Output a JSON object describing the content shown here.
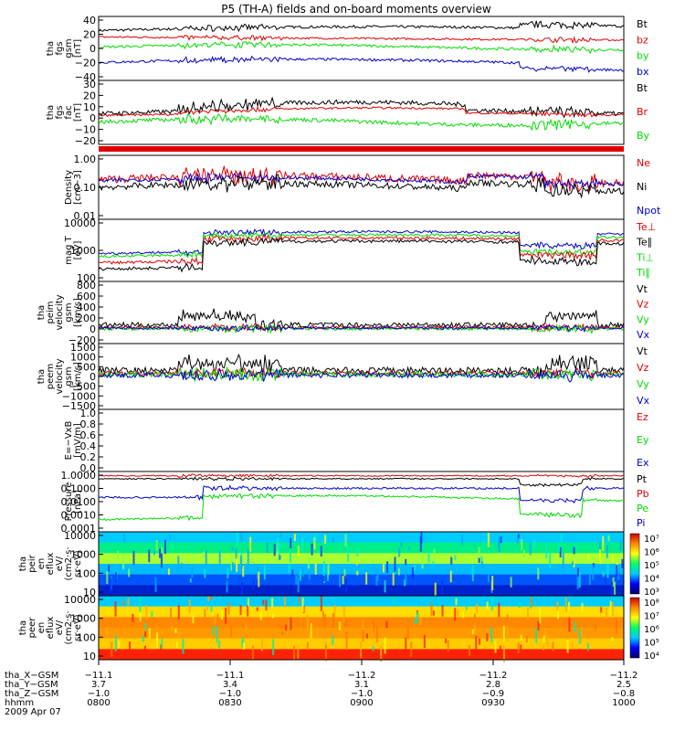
{
  "title": "P5 (TH-A) fields and on-board moments overview",
  "colors": {
    "black": "#000000",
    "red": "#e00000",
    "green": "#00dd00",
    "blue": "#0000cc",
    "orange": "#ff8800",
    "yellow": "#ffee00",
    "cyan": "#00ddff"
  },
  "panels": [
    {
      "id": "fgs-gsm",
      "ylabel": [
        "tha",
        "fgs",
        "gsm",
        "[nT]"
      ],
      "ticks": [
        "40",
        "20",
        "0",
        "−20",
        "−40"
      ],
      "legend": [
        {
          "text": "Bt",
          "color": "black"
        },
        {
          "text": "bz",
          "color": "red"
        },
        {
          "text": "by",
          "color": "green"
        },
        {
          "text": "bx",
          "color": "blue"
        }
      ]
    },
    {
      "id": "fgs-fac",
      "ylabel": [
        "tha",
        "fgs",
        "fac",
        "[nT]"
      ],
      "ticks": [
        "30",
        "20",
        "10",
        "0",
        "−10",
        "−20"
      ],
      "legend": [
        {
          "text": "Bt",
          "color": "black"
        },
        {
          "text": "Br",
          "color": "red"
        },
        {
          "text": "By",
          "color": "green"
        }
      ]
    },
    {
      "id": "density",
      "ylabel": [
        "Density",
        "[cm−3]"
      ],
      "ticks": [
        "1.00",
        "0.10",
        "0.01"
      ],
      "legend": [
        {
          "text": "Ne",
          "color": "red"
        },
        {
          "text": "Ni",
          "color": "black"
        },
        {
          "text": "Npot",
          "color": "blue"
        }
      ]
    },
    {
      "id": "temp",
      "ylabel": [
        "mag T",
        "[eV]"
      ],
      "ticks": [
        "10000",
        "1000",
        "100"
      ],
      "legend": [
        {
          "text": "Te⊥",
          "color": "red"
        },
        {
          "text": "Te∥",
          "color": "black"
        },
        {
          "text": "Ti⊥",
          "color": "green"
        },
        {
          "text": "Ti∥",
          "color": "green"
        }
      ]
    },
    {
      "id": "peim-vel",
      "ylabel": [
        "tha",
        "peim",
        "velocity",
        "gsm",
        "[km/s]"
      ],
      "ticks": [
        "800",
        "600",
        "400",
        "200",
        "0",
        "−200"
      ],
      "legend": [
        {
          "text": "Vt",
          "color": "black"
        },
        {
          "text": "Vz",
          "color": "red"
        },
        {
          "text": "Vy",
          "color": "green"
        },
        {
          "text": "Vx",
          "color": "blue"
        }
      ]
    },
    {
      "id": "peem-vel",
      "ylabel": [
        "tha",
        "peem",
        "velocity",
        "gsm",
        "[km/s]"
      ],
      "ticks": [
        "1500",
        "1000",
        "500",
        "0",
        "−500",
        "−1000",
        "−1500"
      ],
      "legend": [
        {
          "text": "Vt",
          "color": "black"
        },
        {
          "text": "Vz",
          "color": "red"
        },
        {
          "text": "Vy",
          "color": "green"
        },
        {
          "text": "Vx",
          "color": "blue"
        }
      ]
    },
    {
      "id": "efield",
      "ylabel": [
        "E=−VxB",
        "[mV/m]"
      ],
      "ticks": [
        "1.0",
        "0.8",
        "0.6",
        "0.4",
        "0.2",
        "0.0"
      ],
      "legend": [
        {
          "text": "Ez",
          "color": "red"
        },
        {
          "text": "Ey",
          "color": "green"
        },
        {
          "text": "Ex",
          "color": "blue"
        }
      ]
    },
    {
      "id": "pressure",
      "ylabel": [
        "Pressure",
        "[nPa]"
      ],
      "ticks": [
        "1.0000",
        "0.1000",
        "0.0100",
        "0.0010",
        "0.0001"
      ],
      "legend": [
        {
          "text": "Pt",
          "color": "black"
        },
        {
          "text": "Pb",
          "color": "red"
        },
        {
          "text": "Pe",
          "color": "green"
        },
        {
          "text": "Pi",
          "color": "blue"
        }
      ]
    },
    {
      "id": "peir",
      "ylabel": [
        "tha",
        "peir",
        "en",
        "eflux",
        "eV/",
        "(cm2·s·",
        "sr·eV)"
      ],
      "ticks": [
        "10000",
        "1000",
        "100",
        "10"
      ],
      "colorbar": [
        "10⁷",
        "10⁶",
        "10⁵",
        "10⁴",
        "10³"
      ]
    },
    {
      "id": "peer",
      "ylabel": [
        "tha",
        "peer",
        "en",
        "eflux",
        "eV/",
        "(cm2·s·",
        "sr·eV)"
      ],
      "ticks": [
        "10000",
        "1000",
        "100",
        "10"
      ],
      "colorbar": [
        "10⁸",
        "10⁷",
        "10⁶",
        "10⁵",
        "10⁴"
      ]
    }
  ],
  "xaxis": {
    "rows": [
      {
        "label": "tha_X−GSM",
        "values": [
          "−11.1",
          "−11.1",
          "−11.2",
          "−11.2",
          "−11.2"
        ]
      },
      {
        "label": "tha_Y−GSM",
        "values": [
          "3.7",
          "3.4",
          "3.1",
          "2.8",
          "2.5"
        ]
      },
      {
        "label": "tha_Z−GSM",
        "values": [
          "−1.0",
          "−1.0",
          "−1.0",
          "−0.9",
          "−0.8"
        ]
      },
      {
        "label": "hhmm",
        "values": [
          "0800",
          "0830",
          "0900",
          "0930",
          "1000"
        ]
      }
    ],
    "date": "2009 Apr 07"
  },
  "chart_data": {
    "type": "line",
    "title": "P5 (TH-A) fields and on-board moments overview",
    "x": [
      "0800",
      "0830",
      "0900",
      "0930",
      "1000"
    ],
    "series": [
      {
        "name": "Bt",
        "panel": "fgs-gsm",
        "values": [
          25,
          22,
          24,
          27,
          32
        ]
      },
      {
        "name": "bz",
        "panel": "fgs-gsm",
        "values": [
          17,
          14,
          12,
          12,
          14
        ]
      },
      {
        "name": "by",
        "panel": "fgs-gsm",
        "values": [
          0,
          -2,
          2,
          3,
          4
        ]
      },
      {
        "name": "bx",
        "panel": "fgs-gsm",
        "values": [
          -18,
          -8,
          -12,
          -18,
          -25
        ]
      },
      {
        "name": "Ne",
        "panel": "density",
        "values": [
          0.5,
          0.2,
          0.25,
          0.7,
          0.3
        ]
      },
      {
        "name": "Ni",
        "panel": "density",
        "values": [
          0.3,
          0.17,
          0.2,
          0.5,
          0.2
        ]
      },
      {
        "name": "Te⊥",
        "panel": "temp",
        "values": [
          600,
          2500,
          4000,
          2000,
          1200
        ]
      },
      {
        "name": "Pt",
        "panel": "pressure",
        "values": [
          0.3,
          0.25,
          0.25,
          0.3,
          0.35
        ]
      },
      {
        "name": "Pb",
        "panel": "pressure",
        "values": [
          0.25,
          0.2,
          0.2,
          0.25,
          0.3
        ]
      },
      {
        "name": "Pi",
        "panel": "pressure",
        "values": [
          0.05,
          0.03,
          0.03,
          0.04,
          0.04
        ]
      },
      {
        "name": "Pe",
        "panel": "pressure",
        "values": [
          0.02,
          0.01,
          0.01,
          0.005,
          0.01
        ]
      }
    ]
  }
}
